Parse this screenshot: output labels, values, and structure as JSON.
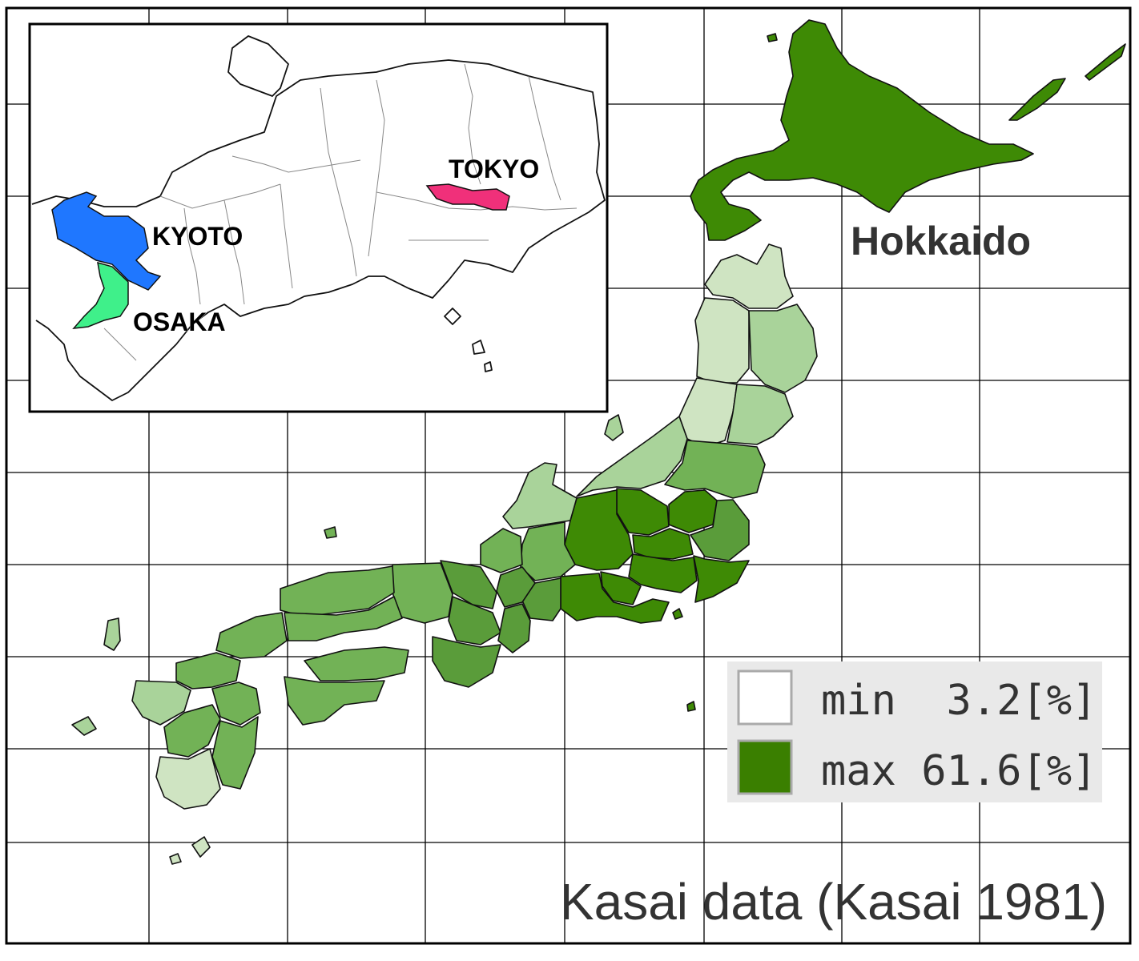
{
  "inset": {
    "labels": {
      "kyoto": "KYOTO",
      "osaka": "OSAKA",
      "tokyo": "TOKYO"
    },
    "colors": {
      "kyoto": "#1f77ff",
      "osaka": "#3ff08a",
      "tokyo": "#f0307a"
    }
  },
  "main_map": {
    "region_label": "Hokkaido"
  },
  "legend": {
    "min_label": "min  3.2[%]",
    "max_label": "max 61.6[%]",
    "min_color": "#ffffff",
    "max_color": "#3a7f00"
  },
  "caption": "Kasai data (Kasai 1981)",
  "colors": {
    "frame": "#000000",
    "grid": "#000000",
    "legend_bg": "#e9e9e9",
    "shade_light": "#cfe4c2",
    "shade_pale": "#a9d39a",
    "shade_mid": "#72b256",
    "shade_strong": "#5a9c3a",
    "shade_dark": "#3e8a05",
    "text": "#333333"
  }
}
